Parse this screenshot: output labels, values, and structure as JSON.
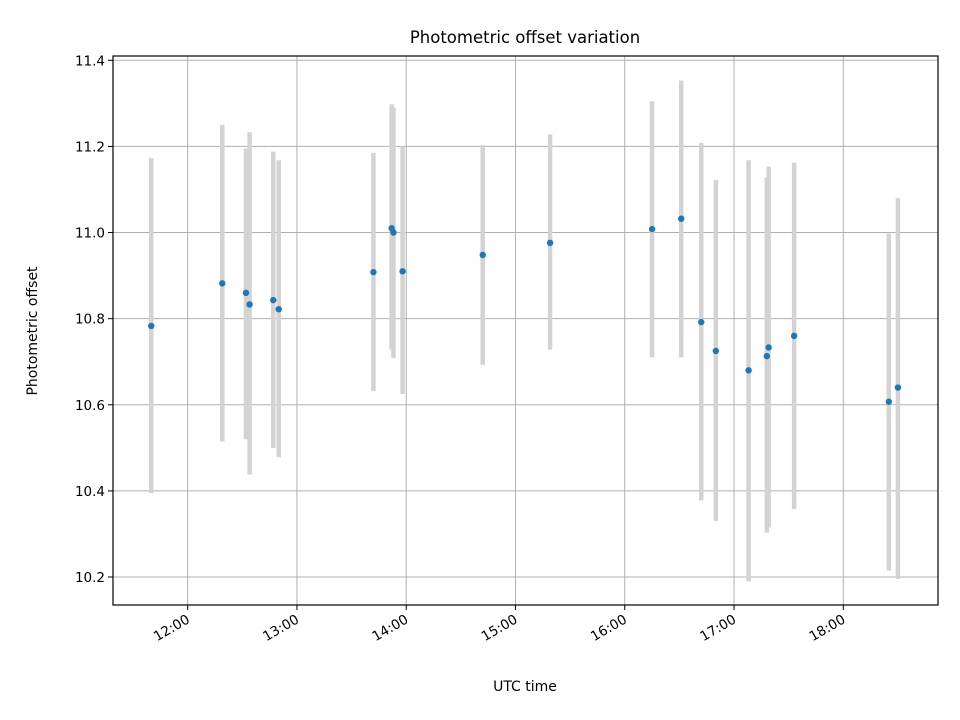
{
  "chart_data": {
    "type": "scatter",
    "title": "Photometric offset variation",
    "xlabel": "UTC time",
    "ylabel": "Photometric offset",
    "x_axis_kind": "time",
    "xlim": [
      "11:19",
      "18:52"
    ],
    "ylim": [
      10.135,
      11.41
    ],
    "x_ticks": [
      "12:00",
      "13:00",
      "14:00",
      "15:00",
      "16:00",
      "17:00",
      "18:00"
    ],
    "y_ticks": [
      "10.2",
      "10.4",
      "10.6",
      "10.8",
      "11.0",
      "11.2",
      "11.4"
    ],
    "grid": true,
    "point_color": "#1f77b4",
    "errorbar_color": "#d3d3d3",
    "points": [
      {
        "x": "11:40",
        "y": 10.783,
        "low": 10.395,
        "high": 11.173
      },
      {
        "x": "12:19",
        "y": 10.882,
        "low": 10.515,
        "high": 11.25
      },
      {
        "x": "12:32",
        "y": 10.86,
        "low": 10.52,
        "high": 11.195
      },
      {
        "x": "12:34",
        "y": 10.833,
        "low": 10.438,
        "high": 11.233
      },
      {
        "x": "12:47",
        "y": 10.843,
        "low": 10.5,
        "high": 11.188
      },
      {
        "x": "12:50",
        "y": 10.822,
        "low": 10.478,
        "high": 11.168
      },
      {
        "x": "13:42",
        "y": 10.908,
        "low": 10.632,
        "high": 11.185
      },
      {
        "x": "13:52",
        "y": 11.01,
        "low": 10.728,
        "high": 11.298
      },
      {
        "x": "13:53",
        "y": 11.0,
        "low": 10.708,
        "high": 11.29
      },
      {
        "x": "13:58",
        "y": 10.91,
        "low": 10.625,
        "high": 11.2
      },
      {
        "x": "14:42",
        "y": 10.948,
        "low": 10.693,
        "high": 11.203
      },
      {
        "x": "15:19",
        "y": 10.976,
        "low": 10.728,
        "high": 11.228
      },
      {
        "x": "16:15",
        "y": 11.008,
        "low": 10.71,
        "high": 11.305
      },
      {
        "x": "16:31",
        "y": 11.032,
        "low": 10.71,
        "high": 11.353
      },
      {
        "x": "16:42",
        "y": 10.792,
        "low": 10.378,
        "high": 11.208
      },
      {
        "x": "16:50",
        "y": 10.725,
        "low": 10.33,
        "high": 11.122
      },
      {
        "x": "17:08",
        "y": 10.68,
        "low": 10.19,
        "high": 11.168
      },
      {
        "x": "17:18",
        "y": 10.713,
        "low": 10.303,
        "high": 11.128
      },
      {
        "x": "17:19",
        "y": 10.733,
        "low": 10.315,
        "high": 11.153
      },
      {
        "x": "17:33",
        "y": 10.76,
        "low": 10.358,
        "high": 11.162
      },
      {
        "x": "18:25",
        "y": 10.607,
        "low": 10.215,
        "high": 10.998
      },
      {
        "x": "18:30",
        "y": 10.64,
        "low": 10.195,
        "high": 11.08
      }
    ]
  }
}
